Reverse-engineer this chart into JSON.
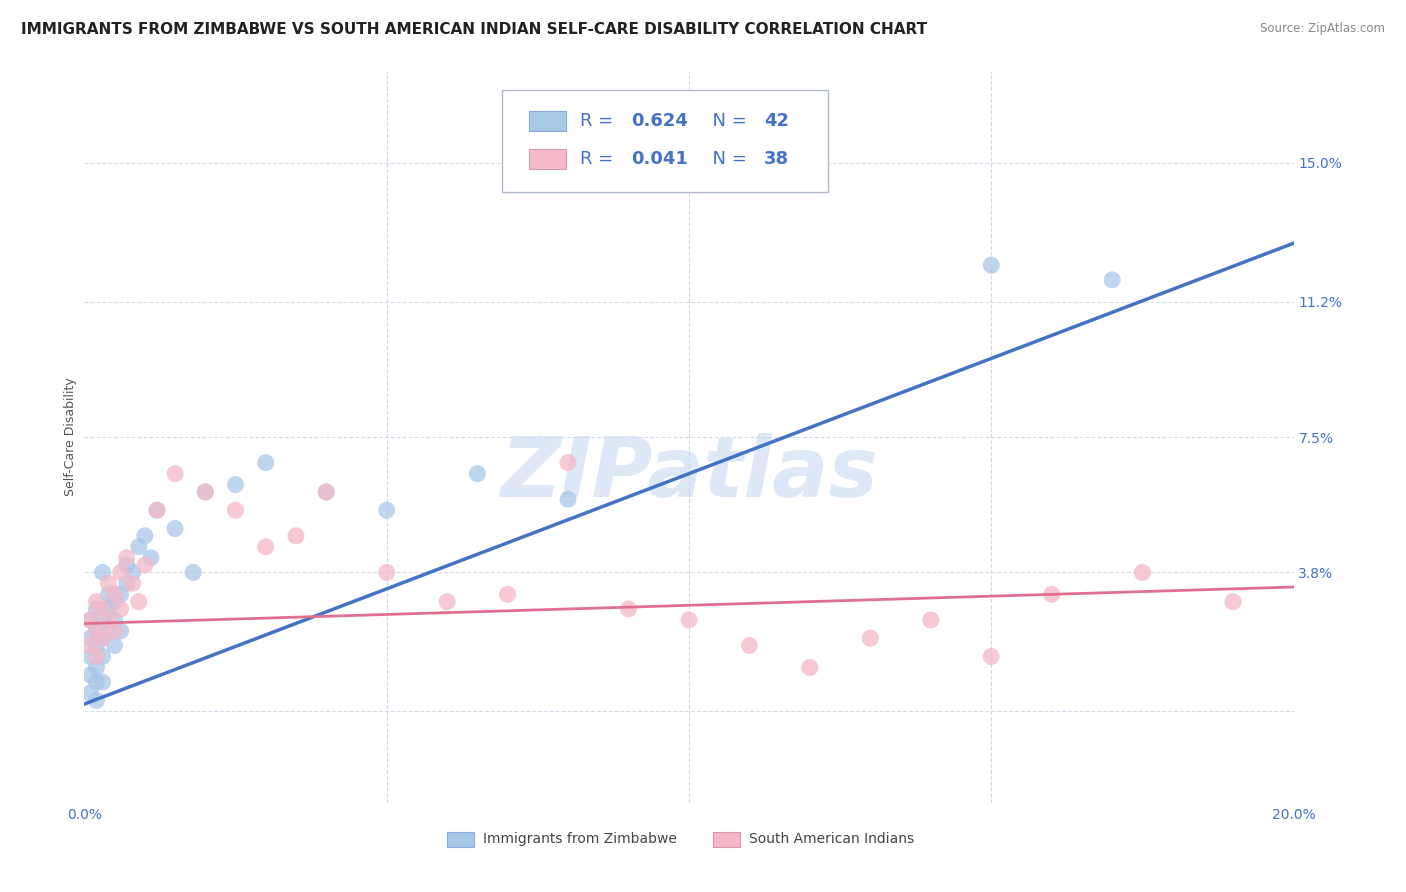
{
  "title": "IMMIGRANTS FROM ZIMBABWE VS SOUTH AMERICAN INDIAN SELF-CARE DISABILITY CORRELATION CHART",
  "source": "Source: ZipAtlas.com",
  "ylabel": "Self-Care Disability",
  "xlim": [
    0.0,
    0.2
  ],
  "ylim": [
    -0.025,
    0.175
  ],
  "yticks": [
    0.0,
    0.038,
    0.075,
    0.112,
    0.15
  ],
  "ytick_labels": [
    "",
    "3.8%",
    "7.5%",
    "11.2%",
    "15.0%"
  ],
  "xticks": [
    0.0,
    0.05,
    0.1,
    0.15,
    0.2
  ],
  "xtick_labels": [
    "0.0%",
    "",
    "",
    "",
    "20.0%"
  ],
  "blue_label": "Immigrants from Zimbabwe",
  "pink_label": "South American Indians",
  "blue_R": "0.624",
  "blue_N": "42",
  "pink_R": "0.041",
  "pink_N": "38",
  "blue_color": "#a8c8e8",
  "pink_color": "#f4b8c8",
  "blue_line_color": "#4472c4",
  "pink_line_color": "#e07090",
  "legend_text_color": "#4472c4",
  "background_color": "#ffffff",
  "watermark": "ZIPatlas",
  "watermark_color": "#c8daf0",
  "blue_line_x0": 0.0,
  "blue_line_y0": 0.002,
  "blue_line_x1": 0.2,
  "blue_line_y1": 0.128,
  "pink_line_x0": 0.0,
  "pink_line_y0": 0.024,
  "pink_line_x1": 0.2,
  "pink_line_y1": 0.034,
  "blue_scatter_x": [
    0.001,
    0.001,
    0.001,
    0.001,
    0.001,
    0.002,
    0.002,
    0.002,
    0.002,
    0.002,
    0.002,
    0.003,
    0.003,
    0.003,
    0.003,
    0.003,
    0.004,
    0.004,
    0.004,
    0.005,
    0.005,
    0.005,
    0.006,
    0.006,
    0.007,
    0.007,
    0.008,
    0.009,
    0.01,
    0.011,
    0.012,
    0.015,
    0.018,
    0.02,
    0.025,
    0.03,
    0.04,
    0.05,
    0.065,
    0.08,
    0.15,
    0.17
  ],
  "blue_scatter_y": [
    0.02,
    0.025,
    0.015,
    0.01,
    0.005,
    0.022,
    0.018,
    0.012,
    0.008,
    0.003,
    0.028,
    0.025,
    0.02,
    0.015,
    0.008,
    0.038,
    0.032,
    0.028,
    0.022,
    0.03,
    0.025,
    0.018,
    0.032,
    0.022,
    0.035,
    0.04,
    0.038,
    0.045,
    0.048,
    0.042,
    0.055,
    0.05,
    0.038,
    0.06,
    0.062,
    0.068,
    0.06,
    0.055,
    0.065,
    0.058,
    0.122,
    0.118
  ],
  "pink_scatter_x": [
    0.001,
    0.001,
    0.002,
    0.002,
    0.002,
    0.003,
    0.003,
    0.004,
    0.004,
    0.005,
    0.005,
    0.006,
    0.006,
    0.007,
    0.008,
    0.009,
    0.01,
    0.012,
    0.015,
    0.02,
    0.025,
    0.03,
    0.035,
    0.04,
    0.05,
    0.06,
    0.07,
    0.08,
    0.09,
    0.1,
    0.11,
    0.12,
    0.13,
    0.14,
    0.15,
    0.16,
    0.175,
    0.19
  ],
  "pink_scatter_y": [
    0.025,
    0.018,
    0.03,
    0.022,
    0.015,
    0.028,
    0.02,
    0.035,
    0.025,
    0.032,
    0.022,
    0.038,
    0.028,
    0.042,
    0.035,
    0.03,
    0.04,
    0.055,
    0.065,
    0.06,
    0.055,
    0.045,
    0.048,
    0.06,
    0.038,
    0.03,
    0.032,
    0.068,
    0.028,
    0.025,
    0.018,
    0.012,
    0.02,
    0.025,
    0.015,
    0.032,
    0.038,
    0.03
  ],
  "title_fontsize": 11,
  "axis_label_fontsize": 9,
  "tick_fontsize": 10,
  "legend_fontsize": 13
}
